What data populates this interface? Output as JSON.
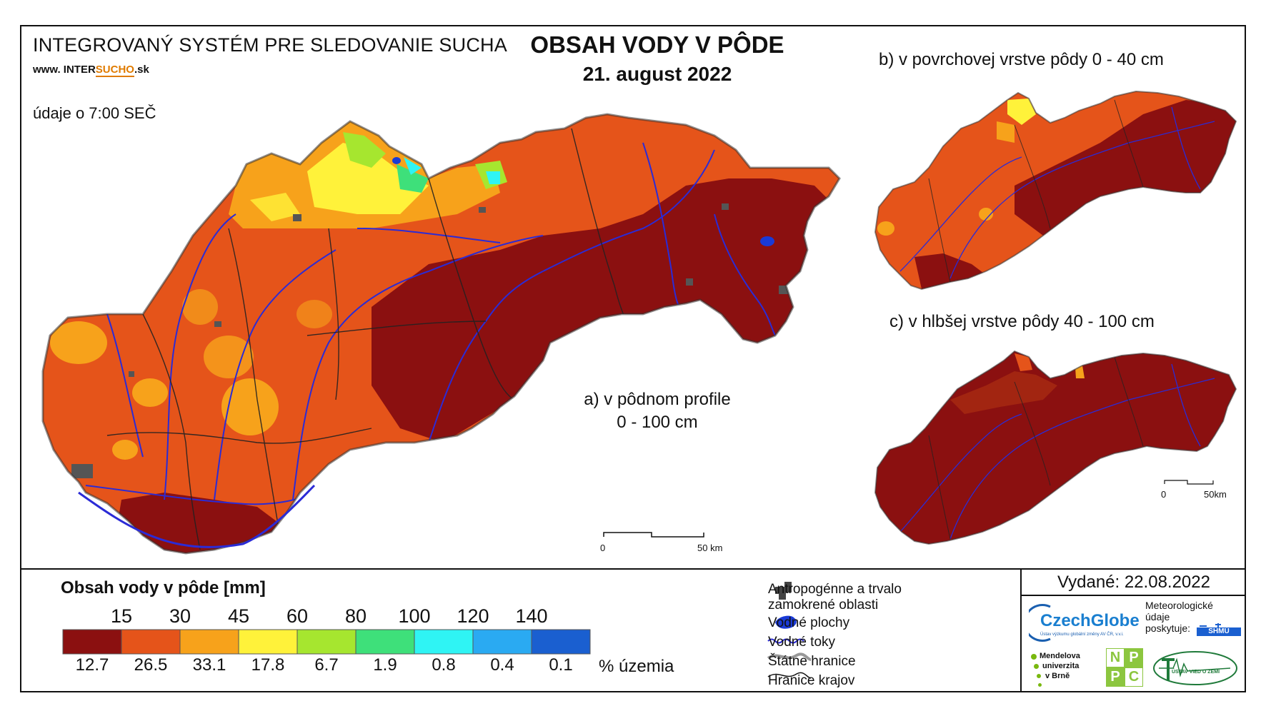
{
  "header": {
    "system_title": "INTEGROVANÝ SYSTÉM PRE SLEDOVANIE SUCHA",
    "website_prefix": "www.",
    "website_a": "INTER",
    "website_b": "SUCHO",
    "website_c": ".sk",
    "data_time": "údaje o 7:00 SEČ",
    "map_title": "OBSAH VODY V PÔDE",
    "map_date": "21. august 2022"
  },
  "maps": {
    "a_label_line1": "a) v pôdnom profile",
    "a_label_line2": "0 - 100 cm",
    "b_label": "b) v povrchovej vrstve pôdy 0 - 40 cm",
    "c_label": "c) v hlbšej vrstve pôdy 40 - 100 cm",
    "scale_a": {
      "start": "0",
      "end": "50 km"
    },
    "scale_c": {
      "start": "0",
      "end": "50km"
    }
  },
  "legend": {
    "title": "Obsah vody v pôde  [mm]",
    "thresholds": [
      "15",
      "30",
      "45",
      "60",
      "80",
      "100",
      "120",
      "140"
    ],
    "colors": [
      "#8b1010",
      "#e5541a",
      "#f7a21b",
      "#fff23a",
      "#a6e62f",
      "#3ee07a",
      "#2ff4f4",
      "#2aaaf2",
      "#1a5fd0"
    ],
    "percentages": [
      "12.7",
      "26.5",
      "33.1",
      "17.8",
      "6.7",
      "1.9",
      "0.8",
      "0.4",
      "0.1"
    ],
    "percent_unit": "% územia"
  },
  "symbols": {
    "anthropogenic_line1": "Antropogénne a trvalo",
    "anthropogenic_line2": "zamokrené oblasti",
    "water_bodies": "Vodné plochy",
    "streams": "Vodné toky",
    "state_border": "Štátne hranice",
    "region_border": "Hranice krajov"
  },
  "footer": {
    "issued": "Vydané: 22.08.2022",
    "czechglobe": "CzechGlobe",
    "czechglobe_sub": "Ústav výzkumu globální změny AV ČR, v.v.i.",
    "meteo_line1": "Meteorologické",
    "meteo_line2": "údaje",
    "meteo_line3": "poskytuje:",
    "shmu": "SHMÚ",
    "mendel_line1": "Mendelova",
    "mendel_line2": "univerzita",
    "mendel_line3": "v Brně",
    "nppc_letters": [
      "N",
      "P",
      "P",
      "C"
    ],
    "uvoz": "ÚSTAV VIED O ZEMI"
  }
}
